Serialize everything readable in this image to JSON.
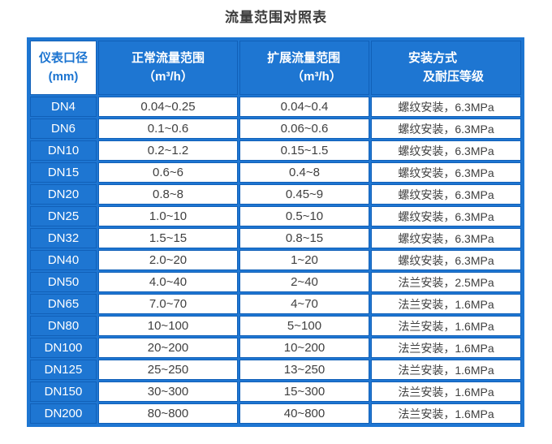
{
  "page": {
    "title": "流量范围对照表"
  },
  "colors": {
    "header_blue": "#1E76D2",
    "grid_blue": "#1160B8",
    "header_text": "#FFFFFF",
    "diameter_header_text": "#1A73D0",
    "cell_text": "#3F3F3F",
    "title_text": "#3C3C3C",
    "cell_bg": "#FFFFFF"
  },
  "chart_data": {
    "type": "table",
    "title": "流量范围对照表",
    "columns": [
      {
        "line1": "仪表口径",
        "line2": "(mm)"
      },
      {
        "line1": "正常流量范围",
        "line2": "（m³/h）"
      },
      {
        "line1": "扩展流量范围",
        "line2": "（m³/h）"
      },
      {
        "line1": "安装方式",
        "line2": "及耐压等级"
      }
    ],
    "rows": [
      [
        "DN4",
        "0.04~0.25",
        "0.04~0.4",
        "螺纹安装，6.3MPa"
      ],
      [
        "DN6",
        "0.1~0.6",
        "0.06~0.6",
        "螺纹安装，6.3MPa"
      ],
      [
        "DN10",
        "0.2~1.2",
        "0.15~1.5",
        "螺纹安装，6.3MPa"
      ],
      [
        "DN15",
        "0.6~6",
        "0.4~8",
        "螺纹安装，6.3MPa"
      ],
      [
        "DN20",
        "0.8~8",
        "0.45~9",
        "螺纹安装，6.3MPa"
      ],
      [
        "DN25",
        "1.0~10",
        "0.5~10",
        "螺纹安装，6.3MPa"
      ],
      [
        "DN32",
        "1.5~15",
        "0.8~15",
        "螺纹安装，6.3MPa"
      ],
      [
        "DN40",
        "2.0~20",
        "1~20",
        "螺纹安装，6.3MPa"
      ],
      [
        "DN50",
        "4.0~40",
        "2~40",
        "法兰安装，2.5MPa"
      ],
      [
        "DN65",
        "7.0~70",
        "4~70",
        "法兰安装，1.6MPa"
      ],
      [
        "DN80",
        "10~100",
        "5~100",
        "法兰安装，1.6MPa"
      ],
      [
        "DN100",
        "20~200",
        "10~200",
        "法兰安装，1.6MPa"
      ],
      [
        "DN125",
        "25~250",
        "13~250",
        "法兰安装，1.6MPa"
      ],
      [
        "DN150",
        "30~300",
        "15~300",
        "法兰安装，1.6MPa"
      ],
      [
        "DN200",
        "80~800",
        "40~800",
        "法兰安装，1.6MPa"
      ]
    ]
  }
}
